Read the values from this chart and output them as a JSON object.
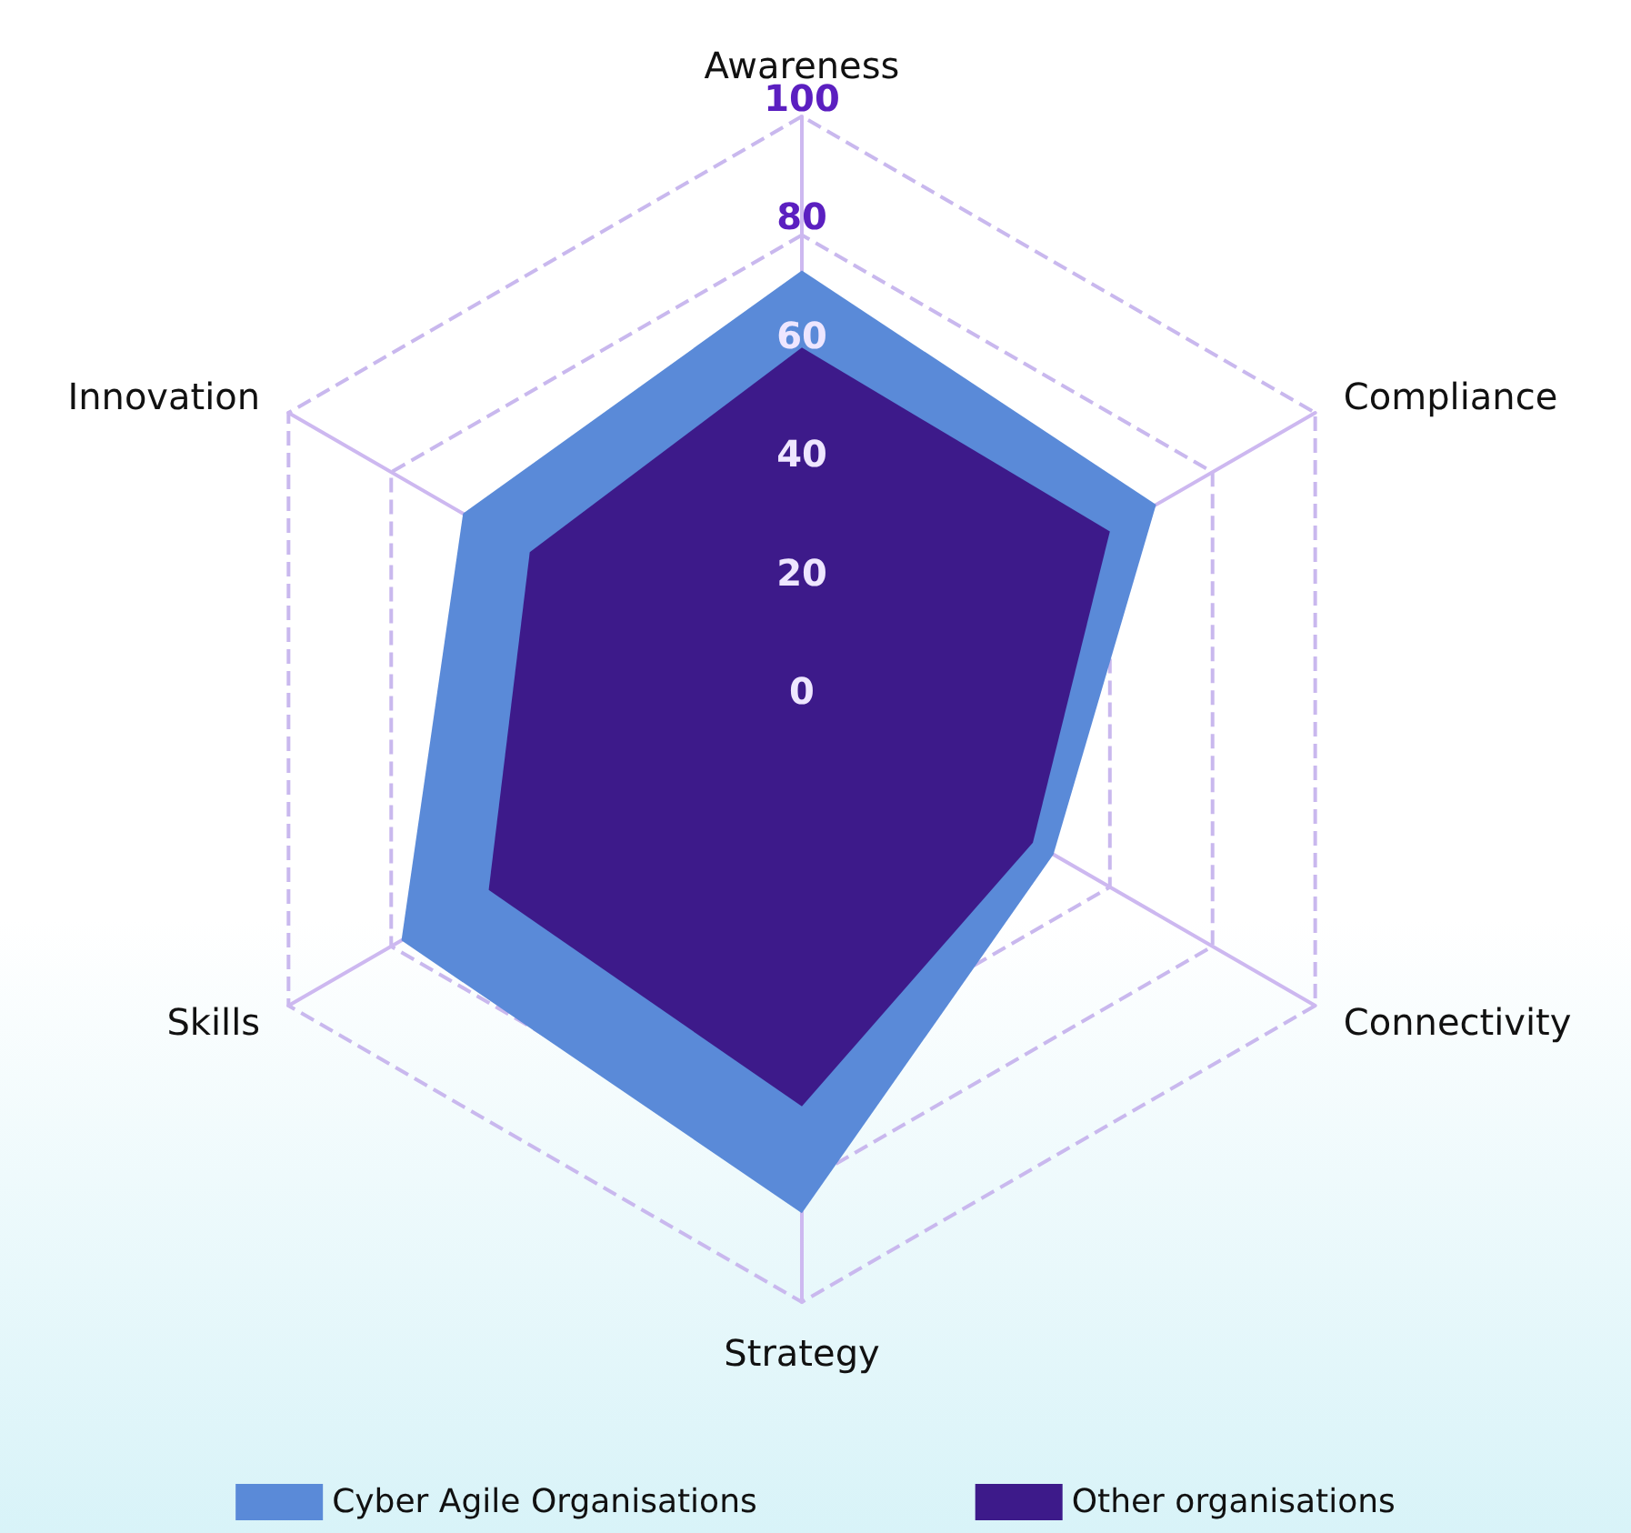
{
  "chart_data": {
    "type": "radar",
    "categories": [
      "Awareness",
      "Compliance",
      "Connectivity",
      "Strategy",
      "Skills",
      "Innovation"
    ],
    "series": [
      {
        "name": "Cyber Agile Organisations",
        "color": "#5a8ad8",
        "values": [
          74,
          69,
          49,
          85,
          78,
          66
        ]
      },
      {
        "name": "Other organisations",
        "color": "#3d1a8a",
        "values": [
          61,
          60,
          45,
          67,
          61,
          53
        ]
      }
    ],
    "ylim": [
      0,
      100
    ],
    "yticks": [
      0,
      20,
      40,
      60,
      80,
      100
    ],
    "grid": true,
    "legend": "bottom",
    "marker": "none"
  }
}
